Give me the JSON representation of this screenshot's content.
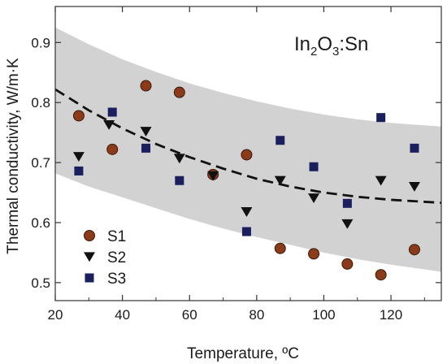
{
  "chart_data": {
    "type": "scatter",
    "annotation": {
      "base": "In",
      "sub1": "2",
      "mid": "O",
      "sub2": "3",
      "rest": ":Sn"
    },
    "xlabel": "Temperature, ºC",
    "ylabel": "Thermal conductivity, W/m·K",
    "xlim": [
      20,
      135
    ],
    "ylim": [
      0.47,
      0.96
    ],
    "x_ticks": [
      20,
      40,
      60,
      80,
      100,
      120
    ],
    "y_ticks": [
      0.5,
      0.6,
      0.7,
      0.8,
      0.9
    ],
    "y_tick_labels": [
      "0.5",
      "0.6",
      "0.7",
      "0.8",
      "0.9"
    ],
    "grid": false,
    "legend_position": "bottom-left",
    "colors": {
      "band": "#d2d2d2",
      "S1": "#8b3a1a",
      "S1_edge": "#3a1a0a",
      "S2": "#111111",
      "S3": "#1a1f5e",
      "trend": "#111111",
      "axis": "#333333"
    },
    "band": {
      "x": [
        20,
        30,
        40,
        50,
        60,
        70,
        80,
        90,
        100,
        110,
        120,
        135
      ],
      "upper": [
        0.925,
        0.897,
        0.872,
        0.851,
        0.832,
        0.816,
        0.802,
        0.79,
        0.78,
        0.772,
        0.766,
        0.76
      ],
      "lower": [
        0.682,
        0.66,
        0.642,
        0.624,
        0.606,
        0.59,
        0.576,
        0.563,
        0.55,
        0.539,
        0.53,
        0.518
      ]
    },
    "trend": {
      "style": "dashed",
      "x": [
        20,
        30,
        40,
        50,
        60,
        70,
        80,
        90,
        100,
        110,
        120,
        135
      ],
      "y": [
        0.822,
        0.787,
        0.757,
        0.731,
        0.709,
        0.69,
        0.673,
        0.66,
        0.65,
        0.643,
        0.638,
        0.633
      ]
    },
    "series": [
      {
        "name": "S1",
        "marker": "circle",
        "x": [
          27,
          37,
          47,
          57,
          67,
          77,
          87,
          97,
          107,
          117,
          127
        ],
        "y": [
          0.778,
          0.722,
          0.828,
          0.817,
          0.68,
          0.713,
          0.557,
          0.548,
          0.531,
          0.513,
          0.555
        ]
      },
      {
        "name": "S2",
        "marker": "triangle-down",
        "x": [
          27,
          36,
          47,
          57,
          67,
          77,
          87,
          97,
          107,
          117,
          127
        ],
        "y": [
          0.71,
          0.763,
          0.752,
          0.707,
          0.678,
          0.618,
          0.67,
          0.641,
          0.598,
          0.67,
          0.66
        ]
      },
      {
        "name": "S3",
        "marker": "square",
        "x": [
          27,
          37,
          47,
          57,
          77,
          87,
          97,
          107,
          117,
          127
        ],
        "y": [
          0.686,
          0.784,
          0.724,
          0.67,
          0.585,
          0.737,
          0.693,
          0.632,
          0.775,
          0.724
        ]
      }
    ]
  }
}
